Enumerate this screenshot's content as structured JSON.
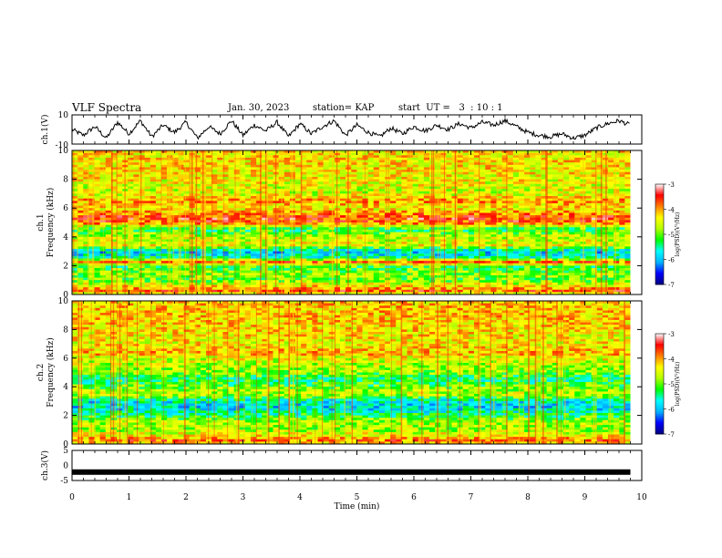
{
  "header": {
    "title": "VLF Spectra",
    "date": "Jan. 30, 2023",
    "station": "station= KAP",
    "start": "start  UT =   3  : 10 : 1"
  },
  "chart_data": [
    {
      "type": "line",
      "id": "ch1-waveform",
      "ylabel": "ch.1(V)",
      "ylim": [
        -10,
        10
      ],
      "yticks": [
        "10",
        "-10"
      ],
      "xlim": [
        0,
        10
      ],
      "series": [
        {
          "x": [
            0,
            0.2,
            0.4,
            0.6,
            0.8,
            1.0,
            1.2,
            1.4,
            1.6,
            1.8,
            2.0,
            2.2,
            2.4,
            2.6,
            2.8,
            3.0,
            3.2,
            3.4,
            3.6,
            3.8,
            4.0,
            4.2,
            4.4,
            4.6,
            4.8,
            5.0,
            5.2,
            5.4,
            5.6,
            5.8,
            6.0,
            6.2,
            6.4,
            6.6,
            6.8,
            7.0,
            7.2,
            7.4,
            7.6,
            7.8,
            8.0,
            8.2,
            8.4,
            8.6,
            8.8,
            9.0,
            9.2,
            9.4,
            9.6,
            9.8
          ],
          "values": [
            0,
            -4,
            2,
            -6,
            5,
            -3,
            6,
            -5,
            3,
            -2,
            5,
            -6,
            2,
            -3,
            6,
            -4,
            3,
            -1,
            5,
            -5,
            4,
            -3,
            2,
            6,
            -4,
            3,
            -2,
            -5,
            1,
            -3,
            2,
            -1,
            3,
            0,
            4,
            1,
            5,
            3,
            6,
            2,
            -2,
            -4,
            -5,
            -3,
            -6,
            -4,
            1,
            4,
            6,
            3
          ]
        }
      ]
    },
    {
      "type": "heatmap",
      "id": "ch1-spectrogram",
      "ylabel": "ch.1\nFrequency  (kHz)",
      "ylim": [
        0,
        10
      ],
      "yticks": [
        "0",
        "2",
        "4",
        "6",
        "8",
        "10"
      ],
      "xlim": [
        0,
        9.8
      ],
      "band_profile_kHz": [
        {
          "f": 0.1,
          "level": -3.5
        },
        {
          "f": 0.5,
          "level": -4.2
        },
        {
          "f": 1.0,
          "level": -5.0
        },
        {
          "f": 1.5,
          "level": -4.9
        },
        {
          "f": 2.0,
          "level": -5.2
        },
        {
          "f": 2.2,
          "level": -3.6
        },
        {
          "f": 2.6,
          "level": -5.6
        },
        {
          "f": 3.0,
          "level": -5.9
        },
        {
          "f": 3.4,
          "level": -4.5
        },
        {
          "f": 4.0,
          "level": -4.6
        },
        {
          "f": 4.5,
          "level": -5.3
        },
        {
          "f": 5.0,
          "level": -3.8
        },
        {
          "f": 5.3,
          "level": -3.6
        },
        {
          "f": 6.0,
          "level": -4.4
        },
        {
          "f": 6.5,
          "level": -4.0
        },
        {
          "f": 7.0,
          "level": -4.6
        },
        {
          "f": 8.0,
          "level": -4.4
        },
        {
          "f": 9.0,
          "level": -4.3
        },
        {
          "f": 10.0,
          "level": -4.3
        }
      ],
      "colorbar": {
        "label": "log(PSD)(V²/Hz)",
        "range": [
          -7,
          -3
        ],
        "ticks": [
          "-3",
          "-4",
          "-5",
          "-6",
          "-7"
        ]
      }
    },
    {
      "type": "heatmap",
      "id": "ch2-spectrogram",
      "ylabel": "ch.2\nFrequency  (kHz)",
      "ylim": [
        0,
        10
      ],
      "yticks": [
        "0",
        "2",
        "4",
        "6",
        "8",
        "10"
      ],
      "xlim": [
        0,
        9.8
      ],
      "band_profile_kHz": [
        {
          "f": 0.1,
          "level": -3.5
        },
        {
          "f": 0.5,
          "level": -4.3
        },
        {
          "f": 1.0,
          "level": -4.8
        },
        {
          "f": 1.5,
          "level": -4.7
        },
        {
          "f": 2.0,
          "level": -5.3
        },
        {
          "f": 2.5,
          "level": -5.8
        },
        {
          "f": 3.0,
          "level": -5.7
        },
        {
          "f": 3.5,
          "level": -4.6
        },
        {
          "f": 4.0,
          "level": -5.0
        },
        {
          "f": 4.5,
          "level": -5.4
        },
        {
          "f": 5.0,
          "level": -4.9
        },
        {
          "f": 6.0,
          "level": -4.5
        },
        {
          "f": 6.3,
          "level": -4.1
        },
        {
          "f": 7.0,
          "level": -4.4
        },
        {
          "f": 8.0,
          "level": -4.3
        },
        {
          "f": 9.0,
          "level": -4.2
        },
        {
          "f": 10.0,
          "level": -4.2
        }
      ],
      "colorbar": {
        "label": "log(PSD)(V²/Hz)",
        "range": [
          -7,
          -3
        ],
        "ticks": [
          "-3",
          "-4",
          "-5",
          "-6",
          "-7"
        ]
      }
    },
    {
      "type": "line",
      "id": "ch3-waveform",
      "ylabel": "ch.3(V)",
      "ylim": [
        -5,
        5
      ],
      "yticks": [
        "5",
        "0",
        "-5"
      ],
      "xlim": [
        0,
        9.8
      ],
      "series": [
        {
          "x": [
            0,
            9.8
          ],
          "values": [
            -2.2,
            -2.2
          ]
        }
      ]
    }
  ],
  "xaxis": {
    "label": "Time  (min)",
    "range": [
      0,
      10
    ],
    "ticks": [
      "0",
      "1",
      "2",
      "3",
      "4",
      "5",
      "6",
      "7",
      "8",
      "9",
      "10"
    ]
  },
  "colormap": [
    "#000080",
    "#0000ff",
    "#00b4ff",
    "#00ffff",
    "#00ff00",
    "#b4ff00",
    "#ffff00",
    "#ff8000",
    "#ff0000",
    "#ffffff"
  ]
}
